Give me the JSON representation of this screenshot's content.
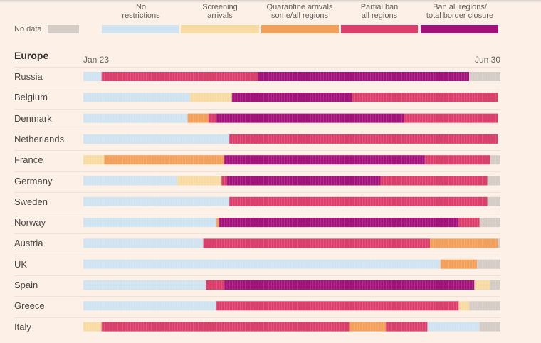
{
  "legend": {
    "no_data_label": "No data",
    "items": [
      {
        "key": "none",
        "label": "No\nrestrictions",
        "color": "#cfe3f0"
      },
      {
        "key": "screening",
        "label": "Screening\narrivals",
        "color": "#f7dba3"
      },
      {
        "key": "quarantine",
        "label": "Quarantine arrivals\nsome/all regions",
        "color": "#f2a05a"
      },
      {
        "key": "partial",
        "label": "Partial ban\nall regions",
        "color": "#dc3e6c"
      },
      {
        "key": "ban",
        "label": "Ban all regions/\ntotal border closure",
        "color": "#a3117a"
      }
    ],
    "nodata_color": "#d6ccc6"
  },
  "chart_data": {
    "type": "timeline",
    "title": "Europe",
    "x_start_label": "Jan 23",
    "x_end_label": "Jun 30",
    "x_unit": "days since Jan 23",
    "x_range": [
      0,
      160
    ],
    "rows": [
      {
        "country": "Russia",
        "segments": [
          [
            "none",
            0,
            7
          ],
          [
            "partial",
            7,
            67
          ],
          [
            "ban",
            67,
            148
          ],
          [
            "nodata",
            148,
            160
          ]
        ]
      },
      {
        "country": "Belgium",
        "segments": [
          [
            "none",
            0,
            41
          ],
          [
            "screening",
            41,
            57
          ],
          [
            "ban",
            57,
            103
          ],
          [
            "partial",
            103,
            159
          ]
        ]
      },
      {
        "country": "Denmark",
        "segments": [
          [
            "none",
            0,
            40
          ],
          [
            "quarantine",
            40,
            48
          ],
          [
            "partial",
            48,
            51
          ],
          [
            "ban",
            51,
            123
          ],
          [
            "partial",
            123,
            159
          ]
        ]
      },
      {
        "country": "Netherlands",
        "segments": [
          [
            "none",
            0,
            56
          ],
          [
            "partial",
            56,
            159
          ]
        ]
      },
      {
        "country": "France",
        "segments": [
          [
            "screening",
            0,
            8
          ],
          [
            "quarantine",
            8,
            54
          ],
          [
            "ban",
            54,
            131
          ],
          [
            "partial",
            131,
            156
          ],
          [
            "nodata",
            156,
            160
          ]
        ]
      },
      {
        "country": "Germany",
        "segments": [
          [
            "none",
            0,
            36
          ],
          [
            "screening",
            36,
            53
          ],
          [
            "partial",
            53,
            55
          ],
          [
            "ban",
            55,
            114
          ],
          [
            "partial",
            114,
            155
          ],
          [
            "nodata",
            155,
            160
          ]
        ]
      },
      {
        "country": "Sweden",
        "segments": [
          [
            "none",
            0,
            56
          ],
          [
            "partial",
            56,
            155
          ],
          [
            "nodata",
            155,
            160
          ]
        ]
      },
      {
        "country": "Norway",
        "segments": [
          [
            "none",
            0,
            51
          ],
          [
            "quarantine",
            51,
            52
          ],
          [
            "ban",
            52,
            144
          ],
          [
            "partial",
            144,
            152
          ],
          [
            "nodata",
            152,
            160
          ]
        ]
      },
      {
        "country": "Austria",
        "segments": [
          [
            "none",
            0,
            46
          ],
          [
            "partial",
            46,
            133
          ],
          [
            "quarantine",
            133,
            159
          ],
          [
            "nodata",
            159,
            160
          ]
        ]
      },
      {
        "country": "UK",
        "segments": [
          [
            "none",
            0,
            137
          ],
          [
            "quarantine",
            137,
            151
          ],
          [
            "nodata",
            151,
            160
          ]
        ]
      },
      {
        "country": "Spain",
        "segments": [
          [
            "none",
            0,
            47
          ],
          [
            "partial",
            47,
            54
          ],
          [
            "ban",
            54,
            150
          ],
          [
            "screening",
            150,
            156
          ],
          [
            "nodata",
            156,
            160
          ]
        ]
      },
      {
        "country": "Greece",
        "segments": [
          [
            "none",
            0,
            51
          ],
          [
            "partial",
            51,
            144
          ],
          [
            "screening",
            144,
            148
          ],
          [
            "nodata",
            148,
            160
          ]
        ]
      },
      {
        "country": "Italy",
        "segments": [
          [
            "screening",
            0,
            7
          ],
          [
            "partial",
            7,
            102
          ],
          [
            "quarantine",
            102,
            116
          ],
          [
            "partial",
            116,
            132
          ],
          [
            "none",
            132,
            152
          ],
          [
            "nodata",
            152,
            160
          ]
        ]
      }
    ]
  }
}
